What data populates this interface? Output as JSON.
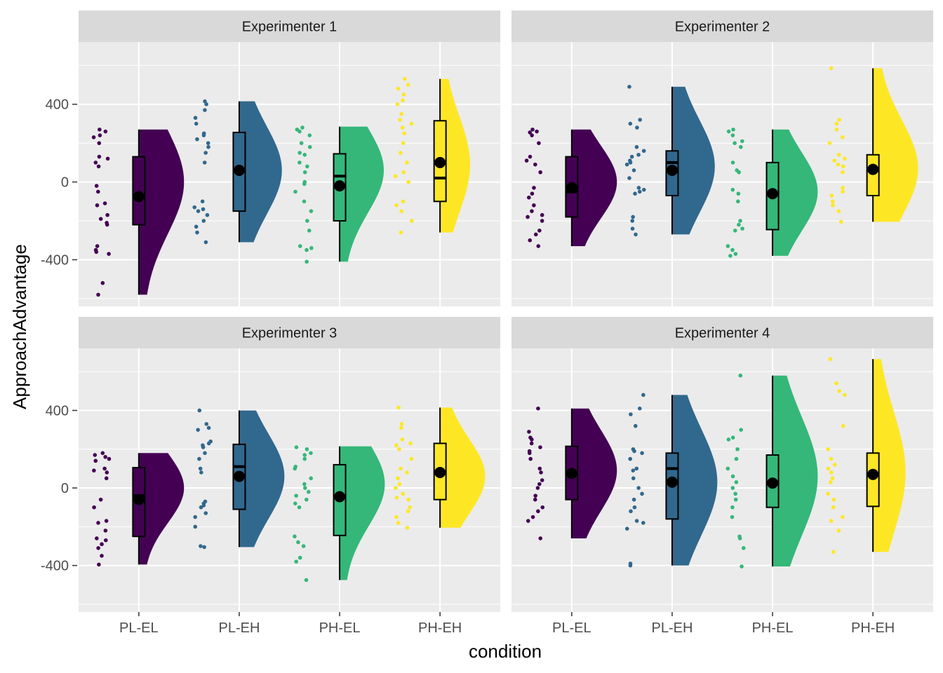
{
  "chart_data": {
    "type": "raincloud",
    "xlabel": "condition",
    "ylabel": "ApproachAdvantage",
    "categories": [
      "PL-EL",
      "PL-EH",
      "PH-EL",
      "PH-EH"
    ],
    "y_ticks": [
      -400,
      0,
      400
    ],
    "ylim": [
      -640,
      720
    ],
    "grid": true,
    "legend": "none",
    "colors": {
      "PL-EL": "#440154",
      "PL-EH": "#31688E",
      "PH-EL": "#35B779",
      "PH-EH": "#FDE725",
      "panel_bg": "#EBEBEB",
      "strip_bg": "#D9D9D9",
      "grid": "#FFFFFF"
    },
    "panels": [
      {
        "title": "Experimenter 1",
        "groups": [
          {
            "condition": "PL-EL",
            "min": -580,
            "q1": -220,
            "median": -70,
            "q3": 130,
            "max": 270,
            "mean": -75,
            "density_peak": 0,
            "width": 0.9,
            "points": [
              270,
              260,
              240,
              230,
              200,
              130,
              120,
              100,
              80,
              -20,
              -50,
              -110,
              -120,
              -170,
              -190,
              -210,
              -220,
              -330,
              -350,
              -360,
              -370,
              -520,
              -580
            ]
          },
          {
            "condition": "PL-EH",
            "min": -310,
            "q1": -150,
            "median": 60,
            "q3": 255,
            "max": 415,
            "mean": 60,
            "density_peak": 60,
            "width": 0.85,
            "points": [
              415,
              400,
              370,
              330,
              300,
              250,
              240,
              220,
              200,
              180,
              150,
              100,
              -100,
              -130,
              -140,
              -150,
              -170,
              -200,
              -230,
              -260,
              -310
            ]
          },
          {
            "condition": "PH-EL",
            "min": -410,
            "q1": -200,
            "median": 30,
            "q3": 145,
            "max": 285,
            "mean": -20,
            "density_peak": 60,
            "width": 0.88,
            "points": [
              280,
              270,
              260,
              240,
              200,
              180,
              150,
              140,
              100,
              80,
              50,
              0,
              -10,
              -50,
              -100,
              -150,
              -200,
              -250,
              -330,
              -340,
              -350,
              -410
            ]
          },
          {
            "condition": "PH-EH",
            "min": -260,
            "q1": -100,
            "median": 20,
            "q3": 315,
            "max": 530,
            "mean": 100,
            "density_peak": 90,
            "width": 0.6,
            "points": [
              530,
              500,
              480,
              450,
              420,
              400,
              350,
              320,
              300,
              280,
              250,
              200,
              150,
              100,
              50,
              30,
              0,
              -100,
              -120,
              -150,
              -200,
              -260
            ]
          }
        ]
      },
      {
        "title": "Experimenter 2",
        "groups": [
          {
            "condition": "PL-EL",
            "min": -330,
            "q1": -180,
            "median": -50,
            "q3": 130,
            "max": 270,
            "mean": -30,
            "density_peak": 0,
            "width": 0.9,
            "points": [
              270,
              260,
              255,
              240,
              200,
              130,
              110,
              90,
              50,
              -30,
              -60,
              -80,
              -120,
              -150,
              -170,
              -180,
              -200,
              -250,
              -270,
              -300,
              -330
            ]
          },
          {
            "condition": "PL-EH",
            "min": -270,
            "q1": -70,
            "median": 100,
            "q3": 160,
            "max": 490,
            "mean": 60,
            "density_peak": 80,
            "width": 0.85,
            "points": [
              490,
              320,
              300,
              280,
              180,
              160,
              140,
              130,
              110,
              100,
              90,
              60,
              20,
              -30,
              -40,
              -50,
              -60,
              -180,
              -200,
              -240,
              -270
            ]
          },
          {
            "condition": "PH-EL",
            "min": -380,
            "q1": -245,
            "median": -60,
            "q3": 100,
            "max": 270,
            "mean": -60,
            "density_peak": -50,
            "width": 0.9,
            "points": [
              270,
              260,
              240,
              210,
              200,
              180,
              100,
              60,
              50,
              -40,
              -60,
              -100,
              -200,
              -220,
              -240,
              -250,
              -330,
              -350,
              -370,
              -380
            ]
          },
          {
            "condition": "PH-EH",
            "min": -205,
            "q1": -70,
            "median": 70,
            "q3": 140,
            "max": 585,
            "mean": 65,
            "density_peak": 70,
            "width": 0.9,
            "points": [
              585,
              320,
              300,
              270,
              230,
              200,
              140,
              120,
              110,
              90,
              80,
              50,
              -30,
              -50,
              -70,
              -100,
              -120,
              -150,
              -205
            ]
          }
        ]
      },
      {
        "title": "Experimenter 3",
        "groups": [
          {
            "condition": "PL-EL",
            "min": -395,
            "q1": -250,
            "median": -40,
            "q3": 105,
            "max": 180,
            "mean": -60,
            "density_peak": 0,
            "width": 0.9,
            "points": [
              180,
              170,
              160,
              150,
              140,
              100,
              90,
              80,
              50,
              -60,
              -100,
              -170,
              -180,
              -220,
              -260,
              -270,
              -290,
              -310,
              -350,
              -395
            ]
          },
          {
            "condition": "PL-EH",
            "min": -305,
            "q1": -110,
            "median": 110,
            "q3": 225,
            "max": 400,
            "mean": 60,
            "density_peak": 60,
            "width": 0.9,
            "points": [
              400,
              330,
              310,
              300,
              240,
              230,
              220,
              210,
              180,
              150,
              100,
              80,
              -70,
              -80,
              -90,
              -100,
              -130,
              -150,
              -200,
              -300,
              -305
            ]
          },
          {
            "condition": "PH-EL",
            "min": -475,
            "q1": -245,
            "median": -40,
            "q3": 120,
            "max": 215,
            "mean": -45,
            "density_peak": 20,
            "width": 0.9,
            "points": [
              210,
              200,
              180,
              170,
              150,
              110,
              100,
              50,
              20,
              0,
              -20,
              -40,
              -60,
              -80,
              -100,
              -250,
              -280,
              -300,
              -360,
              -380,
              -475
            ]
          },
          {
            "condition": "PH-EH",
            "min": -205,
            "q1": -60,
            "median": 80,
            "q3": 230,
            "max": 415,
            "mean": 80,
            "density_peak": 60,
            "width": 0.9,
            "points": [
              415,
              330,
              310,
              250,
              230,
              220,
              200,
              150,
              100,
              80,
              50,
              20,
              0,
              -30,
              -50,
              -60,
              -100,
              -120,
              -150,
              -180,
              -205
            ]
          }
        ]
      },
      {
        "title": "Experimenter 4",
        "groups": [
          {
            "condition": "PL-EL",
            "min": -260,
            "q1": -60,
            "median": 70,
            "q3": 215,
            "max": 410,
            "mean": 75,
            "density_peak": 90,
            "width": 0.9,
            "points": [
              410,
              290,
              260,
              250,
              230,
              210,
              190,
              180,
              150,
              100,
              80,
              40,
              20,
              0,
              -40,
              -60,
              -100,
              -120,
              -150,
              -170,
              -260
            ]
          },
          {
            "condition": "PL-EH",
            "min": -400,
            "q1": -160,
            "median": 100,
            "q3": 180,
            "max": 480,
            "mean": 30,
            "density_peak": 30,
            "width": 0.9,
            "points": [
              480,
              410,
              380,
              320,
              200,
              190,
              180,
              150,
              100,
              90,
              50,
              0,
              -30,
              -60,
              -100,
              -120,
              -170,
              -180,
              -210,
              -390,
              -400
            ]
          },
          {
            "condition": "PH-EL",
            "min": -405,
            "q1": -100,
            "median": 30,
            "q3": 170,
            "max": 580,
            "mean": 25,
            "density_peak": 60,
            "width": 0.9,
            "points": [
              580,
              300,
              260,
              250,
              200,
              150,
              100,
              60,
              30,
              0,
              -30,
              -60,
              -100,
              -150,
              -250,
              -260,
              -310,
              -405
            ]
          },
          {
            "condition": "PH-EH",
            "min": -330,
            "q1": -95,
            "median": 70,
            "q3": 180,
            "max": 665,
            "mean": 70,
            "density_peak": 80,
            "width": 0.65,
            "points": [
              665,
              540,
              500,
              480,
              320,
              200,
              150,
              120,
              100,
              80,
              50,
              30,
              -30,
              -60,
              -100,
              -150,
              -170,
              -220,
              -330
            ]
          }
        ]
      }
    ]
  }
}
